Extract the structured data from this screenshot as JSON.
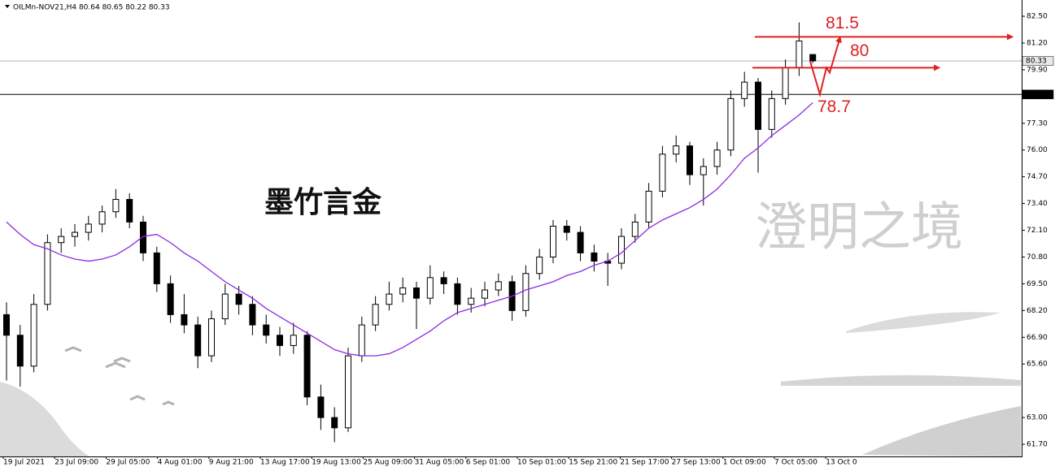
{
  "chart_data": {
    "type": "candlestick",
    "title": "OILMn-NOV21,H4  80.64 80.65 80.22 80.33",
    "ylim": [
      61.11,
      83.29
    ],
    "yticks": [
      {
        "value": 82.5,
        "label": "82.50"
      },
      {
        "value": 81.2,
        "label": "81.20"
      },
      {
        "value": 79.9,
        "label": "79.90"
      },
      {
        "value": 77.3,
        "label": "77.30"
      },
      {
        "value": 76.0,
        "label": "76.00"
      },
      {
        "value": 74.7,
        "label": "74.70"
      },
      {
        "value": 73.4,
        "label": "73.40"
      },
      {
        "value": 72.1,
        "label": "72.10"
      },
      {
        "value": 70.8,
        "label": "70.80"
      },
      {
        "value": 69.5,
        "label": "69.50"
      },
      {
        "value": 68.2,
        "label": "68.20"
      },
      {
        "value": 66.9,
        "label": "66.90"
      },
      {
        "value": 65.6,
        "label": "65.60"
      },
      {
        "value": 63.0,
        "label": "63.00"
      },
      {
        "value": 61.7,
        "label": "61.70"
      }
    ],
    "x_labels": [
      "19 Jul 2021",
      "23 Jul 09:00",
      "29 Jul 05:00",
      "4 Aug 01:00",
      "9 Aug 21:00",
      "13 Aug 17:00",
      "19 Aug 13:00",
      "25 Aug 09:00",
      "31 Aug 05:00",
      "6 Sep 01:00",
      "10 Sep 01:00",
      "15 Sep 21:00",
      "21 Sep 17:00",
      "27 Sep 13:00",
      "1 Oct 09:00",
      "7 Oct 05:00",
      "13 Oct 0"
    ],
    "candles": [
      [
        68.0,
        68.6,
        64.8,
        67.0
      ],
      [
        67.0,
        67.5,
        64.5,
        65.5
      ],
      [
        65.5,
        69.0,
        65.2,
        68.5
      ],
      [
        68.5,
        71.9,
        68.2,
        71.5
      ],
      [
        71.5,
        72.2,
        71.0,
        71.8
      ],
      [
        71.8,
        72.4,
        71.3,
        72.0
      ],
      [
        72.0,
        72.8,
        71.6,
        72.4
      ],
      [
        72.4,
        73.3,
        72.0,
        73.0
      ],
      [
        73.0,
        74.1,
        72.7,
        73.6
      ],
      [
        73.6,
        73.9,
        72.2,
        72.5
      ],
      [
        72.5,
        72.8,
        70.6,
        71.0
      ],
      [
        71.0,
        71.3,
        69.1,
        69.5
      ],
      [
        69.5,
        69.9,
        67.6,
        68.0
      ],
      [
        68.0,
        69.0,
        67.1,
        67.5
      ],
      [
        67.5,
        67.9,
        65.4,
        66.0
      ],
      [
        66.0,
        68.2,
        65.7,
        67.8
      ],
      [
        67.8,
        69.5,
        67.5,
        69.0
      ],
      [
        69.0,
        69.4,
        68.0,
        68.5
      ],
      [
        68.5,
        68.9,
        67.0,
        67.5
      ],
      [
        67.5,
        68.0,
        66.6,
        67.0
      ],
      [
        67.0,
        67.4,
        66.0,
        66.5
      ],
      [
        66.5,
        67.6,
        66.1,
        67.0
      ],
      [
        67.0,
        67.2,
        63.6,
        64.0
      ],
      [
        64.0,
        64.6,
        62.4,
        63.0
      ],
      [
        63.0,
        63.5,
        61.8,
        62.5
      ],
      [
        62.5,
        66.4,
        62.3,
        66.0
      ],
      [
        66.0,
        67.9,
        65.7,
        67.5
      ],
      [
        67.5,
        68.9,
        67.2,
        68.5
      ],
      [
        68.5,
        69.6,
        68.2,
        69.0
      ],
      [
        69.0,
        69.8,
        68.6,
        69.3
      ],
      [
        69.3,
        69.6,
        67.3,
        68.8
      ],
      [
        68.8,
        70.4,
        68.5,
        69.8
      ],
      [
        69.8,
        70.1,
        69.0,
        69.5
      ],
      [
        69.5,
        69.8,
        68.0,
        68.5
      ],
      [
        68.5,
        69.3,
        68.1,
        68.8
      ],
      [
        68.8,
        69.6,
        68.4,
        69.2
      ],
      [
        69.2,
        70.0,
        68.9,
        69.6
      ],
      [
        69.6,
        69.9,
        67.7,
        68.2
      ],
      [
        68.2,
        70.4,
        67.9,
        70.0
      ],
      [
        70.0,
        71.2,
        69.7,
        70.8
      ],
      [
        70.8,
        72.6,
        70.5,
        72.3
      ],
      [
        72.3,
        72.6,
        71.6,
        72.0
      ],
      [
        72.0,
        72.3,
        70.6,
        71.0
      ],
      [
        71.0,
        71.4,
        70.1,
        70.6
      ],
      [
        70.6,
        71.0,
        69.4,
        70.5
      ],
      [
        70.5,
        72.2,
        70.2,
        71.8
      ],
      [
        71.8,
        72.9,
        71.5,
        72.5
      ],
      [
        72.5,
        74.4,
        72.2,
        74.0
      ],
      [
        74.0,
        76.2,
        73.7,
        75.8
      ],
      [
        75.8,
        76.7,
        75.4,
        76.2
      ],
      [
        76.2,
        76.4,
        74.3,
        74.8
      ],
      [
        74.8,
        75.6,
        73.3,
        75.2
      ],
      [
        75.2,
        76.4,
        74.8,
        76.0
      ],
      [
        76.0,
        78.9,
        75.7,
        78.5
      ],
      [
        78.5,
        79.8,
        78.1,
        79.3
      ],
      [
        79.3,
        79.5,
        74.9,
        77.0
      ],
      [
        77.0,
        78.9,
        76.6,
        78.5
      ],
      [
        78.5,
        80.4,
        78.2,
        80.0
      ],
      [
        80.0,
        82.2,
        79.6,
        81.3
      ],
      [
        80.64,
        80.65,
        80.22,
        80.33
      ]
    ],
    "candle_color": "#000000",
    "ma": {
      "color": "#8a2be2",
      "values": [
        72.5,
        71.9,
        71.4,
        71.2,
        70.9,
        70.7,
        70.6,
        70.7,
        70.9,
        71.3,
        71.8,
        71.9,
        71.5,
        71.0,
        70.6,
        70.1,
        69.6,
        69.2,
        68.8,
        68.3,
        67.9,
        67.5,
        67.1,
        66.7,
        66.3,
        66.1,
        66.0,
        66.0,
        66.1,
        66.4,
        66.8,
        67.2,
        67.7,
        68.1,
        68.3,
        68.5,
        68.7,
        68.9,
        69.2,
        69.4,
        69.6,
        69.9,
        70.1,
        70.4,
        70.6,
        71.0,
        71.6,
        72.2,
        72.6,
        72.9,
        73.2,
        73.6,
        74.1,
        74.8,
        75.6,
        76.1,
        76.7,
        77.2,
        77.7,
        78.3
      ]
    },
    "price_lines": [
      {
        "value": 80.33,
        "label": "80.33",
        "color": "#b0b0b0"
      },
      {
        "value": 78.7,
        "label": "78.70",
        "color": "#000000"
      }
    ],
    "levels": [
      {
        "value": 81.5,
        "label": "81.5"
      },
      {
        "value": 80,
        "label": "80"
      },
      {
        "value": 78.7,
        "label": "78.7"
      }
    ],
    "level_color": "#e02020",
    "watermarks": [
      "墨竹言金",
      "澄明之境"
    ]
  }
}
